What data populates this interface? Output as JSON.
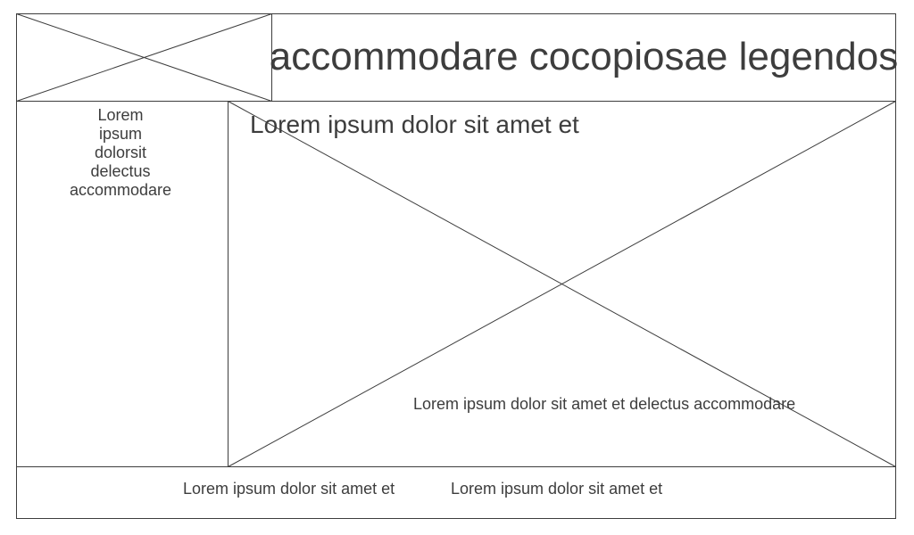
{
  "header": {
    "logo_placeholder": "image-placeholder-icon",
    "title": "accommodare cocopiosae legendos"
  },
  "sidebar": {
    "lines": [
      "Lorem",
      "ipsum",
      "dolorsit",
      "delectus",
      "accommodare"
    ]
  },
  "main": {
    "heading": "Lorem ipsum dolor sit amet et",
    "image_placeholder": "image-placeholder-icon",
    "caption": "Lorem ipsum dolor sit amet et delectus accommodare"
  },
  "footer": {
    "links": [
      "Lorem ipsum dolor sit amet et",
      "Lorem ipsum dolor sit amet et"
    ]
  },
  "colors": {
    "stroke": "#3d3d3d",
    "text": "#3d3d3d",
    "background": "#ffffff"
  }
}
